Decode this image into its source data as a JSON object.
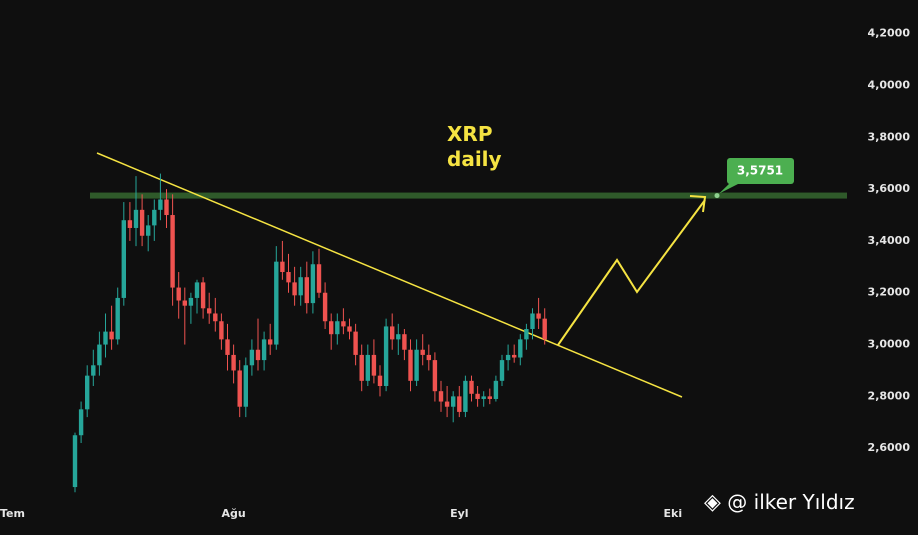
{
  "chart_data": {
    "type": "candlestick",
    "title": "XRP daily",
    "watermark": "@ ilker Yıldız",
    "categories": [
      "Tem",
      null,
      null,
      null,
      null,
      null,
      null,
      null,
      null,
      null,
      null,
      null,
      null,
      null,
      null,
      null,
      null,
      null,
      null,
      null,
      null,
      null,
      null,
      null,
      null,
      null,
      null,
      null,
      null,
      null,
      null,
      null,
      null,
      null,
      null,
      null,
      "Ağu",
      null,
      null,
      null,
      null,
      null,
      null,
      null,
      null,
      null,
      null,
      null,
      null,
      null,
      null,
      null,
      null,
      null,
      null,
      null,
      null,
      null,
      null,
      null,
      null,
      null,
      null,
      null,
      null,
      null,
      null,
      null,
      null,
      null,
      null,
      null,
      null,
      "Eyl",
      null,
      null,
      null,
      null,
      null,
      null,
      null,
      null,
      null,
      null,
      null,
      null,
      null,
      null,
      null,
      null,
      null,
      null,
      null,
      null,
      null,
      null,
      null,
      null,
      null,
      null,
      null,
      null,
      null,
      null,
      null,
      null,
      null,
      null,
      "Eki"
    ],
    "open": [
      null,
      null,
      null,
      null,
      null,
      null,
      null,
      null,
      null,
      null,
      2.45,
      2.65,
      2.75,
      2.88,
      2.92,
      3.0,
      3.05,
      3.02,
      3.18,
      3.48,
      3.45,
      3.52,
      3.42,
      3.46,
      3.52,
      3.56,
      3.5,
      3.22,
      3.17,
      3.15,
      3.18,
      3.24,
      3.14,
      3.12,
      3.09,
      3.02,
      2.96,
      2.9,
      2.76,
      2.92,
      2.98,
      2.94,
      3.02,
      3.0,
      3.32,
      3.28,
      3.24,
      3.19,
      3.26,
      3.16,
      3.31,
      3.2,
      3.09,
      3.04,
      3.09,
      3.07,
      3.05,
      2.96,
      2.86,
      2.96,
      2.88,
      2.84,
      3.07,
      3.02,
      3.04,
      2.98,
      2.86,
      2.98,
      2.96,
      2.94,
      2.82,
      2.78,
      2.76,
      2.8,
      2.74,
      2.86,
      2.81,
      2.79,
      2.8,
      2.79,
      2.86,
      2.94,
      2.96,
      2.95,
      3.02,
      3.06,
      3.12,
      3.1,
      null,
      null,
      null,
      null,
      null,
      null,
      null,
      null,
      null,
      null,
      null,
      null,
      null,
      null,
      null,
      null,
      null,
      null,
      null,
      null,
      null
    ],
    "high": [
      null,
      null,
      null,
      null,
      null,
      null,
      null,
      null,
      null,
      null,
      2.66,
      2.78,
      2.92,
      2.98,
      3.05,
      3.12,
      3.15,
      3.22,
      3.55,
      3.55,
      3.65,
      3.58,
      3.5,
      3.56,
      3.66,
      3.6,
      3.58,
      3.28,
      3.22,
      3.2,
      3.25,
      3.26,
      3.2,
      3.18,
      3.12,
      3.08,
      3.0,
      2.94,
      2.95,
      3.02,
      3.1,
      3.05,
      3.08,
      3.38,
      3.4,
      3.35,
      3.3,
      3.3,
      3.32,
      3.36,
      3.37,
      3.24,
      3.12,
      3.12,
      3.14,
      3.1,
      3.08,
      3.0,
      3.0,
      3.02,
      2.92,
      3.1,
      3.12,
      3.08,
      3.06,
      3.02,
      3.02,
      3.04,
      3.0,
      2.97,
      2.86,
      2.84,
      2.82,
      2.84,
      2.88,
      2.88,
      2.84,
      2.82,
      2.83,
      2.88,
      2.96,
      3.0,
      3.0,
      3.04,
      3.08,
      3.14,
      3.18,
      3.14,
      null,
      null,
      null,
      null,
      null,
      null,
      null,
      null,
      null,
      null,
      null,
      null,
      null,
      null,
      null,
      null,
      null,
      null,
      null,
      null,
      null
    ],
    "low": [
      null,
      null,
      null,
      null,
      null,
      null,
      null,
      null,
      null,
      null,
      2.43,
      2.62,
      2.72,
      2.84,
      2.88,
      2.95,
      2.98,
      3.0,
      3.15,
      3.4,
      3.38,
      3.38,
      3.36,
      3.4,
      3.48,
      3.45,
      3.15,
      3.1,
      3.0,
      3.08,
      3.12,
      3.1,
      3.08,
      3.05,
      2.98,
      2.9,
      2.85,
      2.72,
      2.72,
      2.88,
      2.9,
      2.9,
      2.96,
      2.98,
      3.25,
      3.2,
      3.15,
      3.15,
      3.12,
      3.12,
      3.18,
      3.06,
      2.98,
      3.0,
      3.04,
      3.02,
      2.92,
      2.82,
      2.84,
      2.85,
      2.8,
      2.82,
      2.98,
      2.96,
      2.94,
      2.82,
      2.84,
      2.92,
      2.9,
      2.78,
      2.74,
      2.72,
      2.7,
      2.72,
      2.72,
      2.78,
      2.76,
      2.76,
      2.77,
      2.78,
      2.84,
      2.9,
      2.93,
      2.92,
      2.98,
      3.02,
      3.06,
      3.0,
      null,
      null,
      null,
      null,
      null,
      null,
      null,
      null,
      null,
      null,
      null,
      null,
      null,
      null,
      null,
      null,
      null,
      null,
      null,
      null,
      null
    ],
    "close": [
      null,
      null,
      null,
      null,
      null,
      null,
      null,
      null,
      null,
      null,
      2.65,
      2.75,
      2.88,
      2.92,
      3.0,
      3.05,
      3.02,
      3.18,
      3.48,
      3.45,
      3.52,
      3.42,
      3.46,
      3.52,
      3.56,
      3.5,
      3.22,
      3.17,
      3.15,
      3.18,
      3.24,
      3.14,
      3.12,
      3.09,
      3.02,
      2.96,
      2.9,
      2.76,
      2.92,
      2.98,
      2.94,
      3.02,
      3.0,
      3.32,
      3.28,
      3.24,
      3.19,
      3.26,
      3.16,
      3.31,
      3.2,
      3.09,
      3.04,
      3.09,
      3.07,
      3.05,
      2.96,
      2.86,
      2.96,
      2.88,
      2.84,
      3.07,
      3.02,
      3.04,
      2.98,
      2.86,
      2.98,
      2.96,
      2.94,
      2.82,
      2.78,
      2.76,
      2.8,
      2.74,
      2.86,
      2.81,
      2.79,
      2.8,
      2.79,
      2.86,
      2.94,
      2.96,
      2.95,
      3.02,
      3.06,
      3.12,
      3.1,
      3.02,
      null,
      null,
      null,
      null,
      null,
      null,
      null,
      null,
      null,
      null,
      null,
      null,
      null,
      null,
      null,
      null,
      null,
      null,
      null,
      null,
      null
    ],
    "up_color": "#26a69a",
    "down_color": "#ef5350",
    "level": {
      "value": 3.5751,
      "label": "3,5751"
    },
    "ylim": [
      2.4,
      4.33
    ],
    "yticks": [
      {
        "value": 2.6,
        "label": "2,6000"
      },
      {
        "value": 2.8,
        "label": "2,8000"
      },
      {
        "value": 3.0,
        "label": "3,0000"
      },
      {
        "value": 3.2,
        "label": "3,2000"
      },
      {
        "value": 3.4,
        "label": "3,4000"
      },
      {
        "value": 3.6,
        "label": "3,6000"
      },
      {
        "value": 3.8,
        "label": "3,8000"
      },
      {
        "value": 4.0,
        "label": "4,0000"
      },
      {
        "value": 4.2,
        "label": "4,2000"
      }
    ],
    "grid": false
  }
}
